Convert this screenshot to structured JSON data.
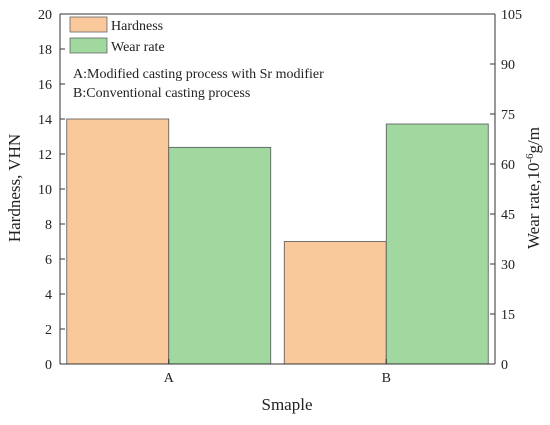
{
  "chart_data": {
    "type": "bar",
    "categories": [
      "A",
      "B"
    ],
    "series": [
      {
        "name": "Hardness",
        "axis": "left",
        "color": "#f9c89b",
        "values": [
          14.0,
          7.0
        ]
      },
      {
        "name": "Wear rate",
        "axis": "right",
        "color": "#a0d8a0",
        "values": [
          65.0,
          72.0
        ]
      }
    ],
    "xlabel": "Smaple",
    "ylabel_left": "Hardness, VHN",
    "ylabel_right": {
      "base": "Wear rate,10",
      "sup": "-6",
      "unit": "g/m"
    },
    "ylim_left": [
      0,
      20
    ],
    "yticks_left": [
      0,
      2,
      4,
      6,
      8,
      10,
      12,
      14,
      16,
      18,
      20
    ],
    "ylim_right": [
      0,
      105
    ],
    "yticks_right": [
      0,
      15,
      30,
      45,
      60,
      75,
      90,
      105
    ],
    "legend_position": "top-left",
    "annotations": [
      "A:Modified casting process with Sr modifier",
      "B:Conventional casting process"
    ],
    "grid": false
  }
}
